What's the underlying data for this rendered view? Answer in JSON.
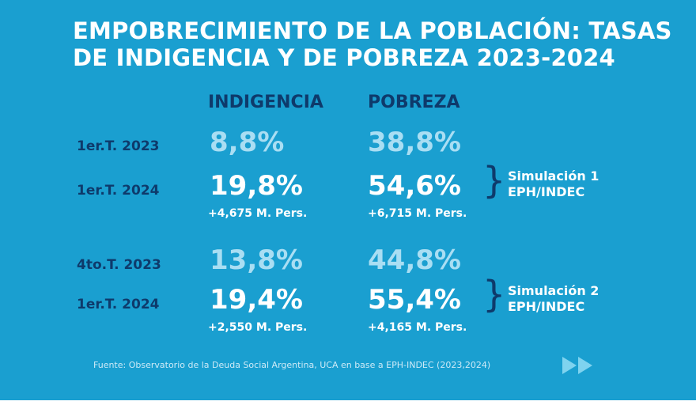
{
  "chart_data": {
    "type": "table",
    "title_line1": "EMPOBRECIMIENTO DE LA POBLACIÓN: TASAS",
    "title_line2": "DE INDIGENCIA Y DE POBREZA 2023-2024",
    "columns": [
      "INDIGENCIA",
      "POBREZA"
    ],
    "rows": [
      {
        "label": "1er.T. 2023",
        "indigencia": "8,8%",
        "pobreza": "38,8%"
      },
      {
        "label": "1er.T. 2024",
        "indigencia": "19,8%",
        "pobreza": "54,6%",
        "indigencia_delta": "+4,675 M. Pers.",
        "pobreza_delta": "+6,715 M. Pers."
      },
      {
        "label": "4to.T. 2023",
        "indigencia": "13,8%",
        "pobreza": "44,8%"
      },
      {
        "label": "1er.T. 2024",
        "indigencia": "19,4%",
        "pobreza": "55,4%",
        "indigencia_delta": "+2,550 M. Pers.",
        "pobreza_delta": "+4,165 M. Pers."
      }
    ],
    "groups": [
      {
        "line1": "Simulación 1",
        "line2": "EPH/INDEC"
      },
      {
        "line1": "Simulación 2",
        "line2": "EPH/INDEC"
      }
    ],
    "source": "Fuente: Observatorio de la Deuda Social Argentina, UCA en base a EPH-INDEC (2023,2024)"
  },
  "icons": {
    "next": "double-chevron-right-icon"
  },
  "colors": {
    "background": "#1a9fd0",
    "header": "#0e3a6b",
    "value_light": "#a9def3",
    "value_strong": "#ffffff",
    "arrow": "#7fd3ef"
  }
}
